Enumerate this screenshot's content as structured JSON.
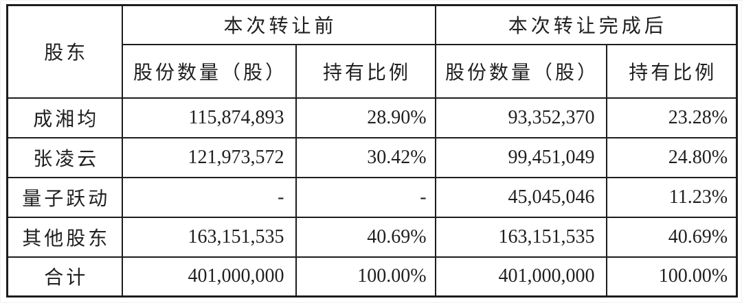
{
  "table": {
    "title_semantic": "shareholding-structure-before-and-after-transfer",
    "colors": {
      "border": "#1c1c1c",
      "text": "#1f1f1f",
      "background": "#ffffff"
    },
    "headers": {
      "shareholder": "股东",
      "before_group": "本次转让前",
      "after_group": "本次转让完成后",
      "shares_label": "股份数量（股）",
      "ratio_label": "持有比例"
    },
    "rows": [
      {
        "name": "成湘均",
        "before_shares": "115,874,893",
        "before_ratio": "28.90%",
        "after_shares": "93,352,370",
        "after_ratio": "23.28%"
      },
      {
        "name": "张凌云",
        "before_shares": "121,973,572",
        "before_ratio": "30.42%",
        "after_shares": "99,451,049",
        "after_ratio": "24.80%"
      },
      {
        "name": "量子跃动",
        "before_shares": "-",
        "before_ratio": "-",
        "after_shares": "45,045,046",
        "after_ratio": "11.23%"
      },
      {
        "name": "其他股东",
        "before_shares": "163,151,535",
        "before_ratio": "40.69%",
        "after_shares": "163,151,535",
        "after_ratio": "40.69%"
      },
      {
        "name": "合计",
        "before_shares": "401,000,000",
        "before_ratio": "100.00%",
        "after_shares": "401,000,000",
        "after_ratio": "100.00%"
      }
    ]
  }
}
